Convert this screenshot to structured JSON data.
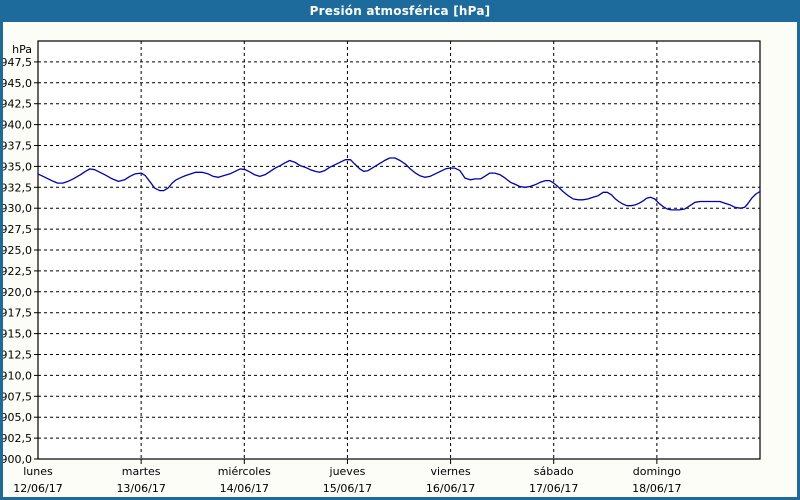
{
  "window": {
    "title": "Presión atmosférica [hPa]"
  },
  "colors": {
    "titlebar_bg": "#1d6b9d",
    "window_border": "#1d6b9d",
    "content_bg": "#fdfdf8",
    "plot_bg": "#ffffff",
    "grid_color": "#000000",
    "axis_text_color": "#000000",
    "line_color": "#0000b3",
    "title_text_color": "#ffffff"
  },
  "chart_data": {
    "type": "line",
    "title": "Presión atmosférica [hPa]",
    "ylabel_unit": "hPa",
    "ylim": [
      900,
      950
    ],
    "ytick_step": 2.5,
    "ytick_labels": [
      "947,5",
      "945,0",
      "942,5",
      "940,0",
      "937,5",
      "935,0",
      "932,5",
      "930,0",
      "927,5",
      "925,0",
      "922,5",
      "920,0",
      "917,5",
      "915,0",
      "912,5",
      "910,0",
      "907,5",
      "905,0",
      "902,5",
      "900,0"
    ],
    "grid": "dashed-black",
    "legend": "none",
    "x_axis": {
      "unit": "days",
      "days": [
        {
          "weekday": "lunes",
          "date": "12/06/17"
        },
        {
          "weekday": "martes",
          "date": "13/06/17"
        },
        {
          "weekday": "miércoles",
          "date": "14/06/17"
        },
        {
          "weekday": "jueves",
          "date": "15/06/17"
        },
        {
          "weekday": "viernes",
          "date": "16/06/17"
        },
        {
          "weekday": "sábado",
          "date": "17/06/17"
        },
        {
          "weekday": "domingo",
          "date": "18/06/17"
        }
      ]
    },
    "series": [
      {
        "name": "Presión atmosférica",
        "color": "#0000b3",
        "x_unit": "days_from_2017-06-12",
        "points": [
          [
            0,
            934.1
          ],
          [
            0.05,
            933.8
          ],
          [
            0.1,
            933.5
          ],
          [
            0.15,
            933.2
          ],
          [
            0.19,
            933.0
          ],
          [
            0.24,
            933.0
          ],
          [
            0.29,
            933.2
          ],
          [
            0.34,
            933.5
          ],
          [
            0.41,
            934.0
          ],
          [
            0.46,
            934.4
          ],
          [
            0.5,
            934.7
          ],
          [
            0.55,
            934.6
          ],
          [
            0.6,
            934.3
          ],
          [
            0.65,
            934.0
          ],
          [
            0.72,
            933.5
          ],
          [
            0.78,
            933.2
          ],
          [
            0.84,
            933.4
          ],
          [
            0.89,
            933.8
          ],
          [
            0.94,
            934.1
          ],
          [
            1.0,
            934.2
          ],
          [
            1.04,
            933.9
          ],
          [
            1.09,
            933.1
          ],
          [
            1.13,
            932.4
          ],
          [
            1.18,
            932.1
          ],
          [
            1.22,
            932.1
          ],
          [
            1.26,
            932.4
          ],
          [
            1.3,
            933.0
          ],
          [
            1.34,
            933.4
          ],
          [
            1.39,
            933.7
          ],
          [
            1.43,
            933.9
          ],
          [
            1.48,
            934.1
          ],
          [
            1.53,
            934.3
          ],
          [
            1.59,
            934.3
          ],
          [
            1.65,
            934.1
          ],
          [
            1.7,
            933.8
          ],
          [
            1.75,
            933.7
          ],
          [
            1.8,
            933.9
          ],
          [
            1.86,
            934.1
          ],
          [
            1.91,
            934.4
          ],
          [
            1.96,
            934.7
          ],
          [
            2.01,
            934.6
          ],
          [
            2.06,
            934.3
          ],
          [
            2.1,
            934.0
          ],
          [
            2.15,
            933.8
          ],
          [
            2.2,
            934.0
          ],
          [
            2.25,
            934.4
          ],
          [
            2.3,
            934.8
          ],
          [
            2.35,
            935.1
          ],
          [
            2.39,
            935.4
          ],
          [
            2.44,
            935.7
          ],
          [
            2.49,
            935.5
          ],
          [
            2.54,
            935.1
          ],
          [
            2.59,
            934.9
          ],
          [
            2.64,
            934.6
          ],
          [
            2.69,
            934.4
          ],
          [
            2.73,
            934.3
          ],
          [
            2.78,
            934.5
          ],
          [
            2.83,
            934.9
          ],
          [
            2.88,
            935.2
          ],
          [
            2.93,
            935.5
          ],
          [
            2.98,
            935.8
          ],
          [
            3.03,
            935.8
          ],
          [
            3.07,
            935.3
          ],
          [
            3.12,
            934.7
          ],
          [
            3.16,
            934.4
          ],
          [
            3.2,
            934.5
          ],
          [
            3.24,
            934.8
          ],
          [
            3.28,
            935.1
          ],
          [
            3.32,
            935.4
          ],
          [
            3.36,
            935.7
          ],
          [
            3.41,
            936.0
          ],
          [
            3.46,
            936.0
          ],
          [
            3.51,
            935.7
          ],
          [
            3.56,
            935.3
          ],
          [
            3.61,
            934.7
          ],
          [
            3.66,
            934.2
          ],
          [
            3.7,
            933.9
          ],
          [
            3.75,
            933.7
          ],
          [
            3.8,
            933.8
          ],
          [
            3.85,
            934.1
          ],
          [
            3.9,
            934.4
          ],
          [
            3.95,
            934.7
          ],
          [
            3.99,
            934.8
          ],
          [
            4.04,
            934.8
          ],
          [
            4.09,
            934.5
          ],
          [
            4.14,
            933.6
          ],
          [
            4.19,
            933.4
          ],
          [
            4.24,
            933.5
          ],
          [
            4.29,
            933.5
          ],
          [
            4.33,
            933.8
          ],
          [
            4.38,
            934.2
          ],
          [
            4.43,
            934.2
          ],
          [
            4.48,
            934.0
          ],
          [
            4.53,
            933.6
          ],
          [
            4.58,
            933.1
          ],
          [
            4.62,
            932.9
          ],
          [
            4.67,
            932.6
          ],
          [
            4.72,
            932.5
          ],
          [
            4.77,
            932.6
          ],
          [
            4.82,
            932.8
          ],
          [
            4.87,
            933.1
          ],
          [
            4.92,
            933.3
          ],
          [
            4.96,
            933.3
          ],
          [
            5.0,
            933.0
          ],
          [
            5.04,
            932.6
          ],
          [
            5.09,
            932.0
          ],
          [
            5.14,
            931.5
          ],
          [
            5.19,
            931.1
          ],
          [
            5.24,
            931.0
          ],
          [
            5.28,
            931.0
          ],
          [
            5.33,
            931.1
          ],
          [
            5.38,
            931.3
          ],
          [
            5.43,
            931.5
          ],
          [
            5.48,
            931.9
          ],
          [
            5.52,
            931.9
          ],
          [
            5.56,
            931.6
          ],
          [
            5.59,
            931.2
          ],
          [
            5.63,
            930.8
          ],
          [
            5.67,
            930.5
          ],
          [
            5.71,
            930.3
          ],
          [
            5.75,
            930.3
          ],
          [
            5.79,
            930.4
          ],
          [
            5.83,
            930.6
          ],
          [
            5.87,
            930.9
          ],
          [
            5.9,
            931.2
          ],
          [
            5.94,
            931.3
          ],
          [
            5.98,
            931.1
          ],
          [
            6.02,
            930.6
          ],
          [
            6.06,
            930.2
          ],
          [
            6.1,
            929.9
          ],
          [
            6.14,
            929.8
          ],
          [
            6.18,
            929.8
          ],
          [
            6.22,
            929.8
          ],
          [
            6.27,
            929.9
          ],
          [
            6.32,
            930.3
          ],
          [
            6.37,
            930.7
          ],
          [
            6.42,
            930.8
          ],
          [
            6.47,
            930.8
          ],
          [
            6.52,
            930.8
          ],
          [
            6.56,
            930.8
          ],
          [
            6.61,
            930.8
          ],
          [
            6.66,
            930.6
          ],
          [
            6.71,
            930.4
          ],
          [
            6.76,
            930.1
          ],
          [
            6.81,
            930.0
          ],
          [
            6.85,
            930.1
          ],
          [
            6.88,
            930.5
          ],
          [
            6.92,
            931.2
          ],
          [
            6.96,
            931.7
          ],
          [
            7.0,
            932.0
          ]
        ]
      }
    ]
  }
}
